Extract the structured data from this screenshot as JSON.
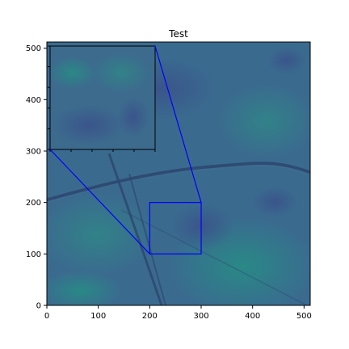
{
  "chart_data": {
    "type": "heatmap",
    "title": "Test",
    "xlabel": "",
    "ylabel": "",
    "xlim": [
      0,
      512
    ],
    "ylim": [
      0,
      512
    ],
    "x_ticks": [
      0,
      100,
      200,
      300,
      400,
      500
    ],
    "y_ticks": [
      0,
      100,
      200,
      300,
      400,
      500
    ],
    "x_tick_labels": [
      "0",
      "100",
      "200",
      "300",
      "400",
      "500"
    ],
    "y_tick_labels": [
      "0",
      "100",
      "200",
      "300",
      "400",
      "500"
    ],
    "colormap": "viridis",
    "zoom_region": {
      "x": [
        200,
        300
      ],
      "y": [
        100,
        200
      ]
    },
    "inset_location": "top-left",
    "colors": {
      "connector": "#0000ff",
      "inset_border": "#000000"
    }
  }
}
